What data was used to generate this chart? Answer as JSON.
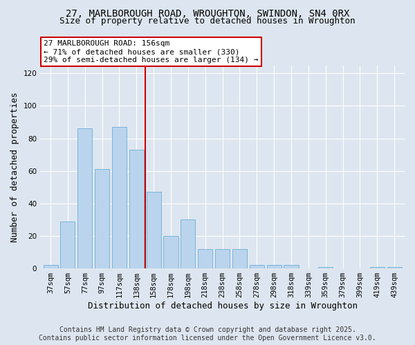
{
  "title1": "27, MARLBOROUGH ROAD, WROUGHTON, SWINDON, SN4 0RX",
  "title2": "Size of property relative to detached houses in Wroughton",
  "xlabel": "Distribution of detached houses by size in Wroughton",
  "ylabel": "Number of detached properties",
  "bar_labels": [
    "37sqm",
    "57sqm",
    "77sqm",
    "97sqm",
    "117sqm",
    "138sqm",
    "158sqm",
    "178sqm",
    "198sqm",
    "218sqm",
    "238sqm",
    "258sqm",
    "278sqm",
    "298sqm",
    "318sqm",
    "339sqm",
    "359sqm",
    "379sqm",
    "399sqm",
    "419sqm",
    "439sqm"
  ],
  "bar_values": [
    2,
    29,
    86,
    61,
    87,
    73,
    47,
    20,
    30,
    12,
    12,
    12,
    2,
    2,
    2,
    0,
    1,
    0,
    0,
    1,
    1
  ],
  "bar_color": "#bad4ed",
  "bar_edge_color": "#6baed6",
  "ylim": [
    0,
    125
  ],
  "yticks": [
    0,
    20,
    40,
    60,
    80,
    100,
    120
  ],
  "vline_x": 5.5,
  "vline_color": "#cc0000",
  "annotation_text": "27 MARLBOROUGH ROAD: 156sqm\n← 71% of detached houses are smaller (330)\n29% of semi-detached houses are larger (134) →",
  "annotation_box_color": "#ffffff",
  "annotation_box_edge": "#cc0000",
  "footer1": "Contains HM Land Registry data © Crown copyright and database right 2025.",
  "footer2": "Contains public sector information licensed under the Open Government Licence v3.0.",
  "background_color": "#dde6f0",
  "grid_color": "#ffffff",
  "title_fontsize": 10,
  "subtitle_fontsize": 9,
  "axis_label_fontsize": 9,
  "tick_fontsize": 7.5,
  "footer_fontsize": 7,
  "annotation_fontsize": 8
}
